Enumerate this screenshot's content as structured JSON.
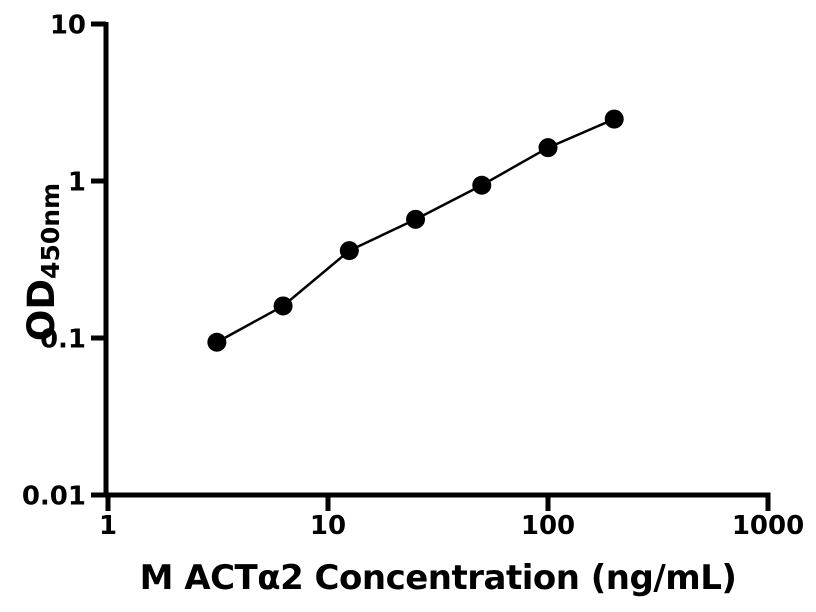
{
  "figure": {
    "background_color": "#ffffff",
    "ink_color": "#000000"
  },
  "chart_data": {
    "type": "scatter",
    "subtype": "log-log standard curve with connecting line",
    "title": "",
    "xlabel": "M ACTα2 Concentration (ng/mL)",
    "ylabel_main": "OD",
    "ylabel_sub": "450nm",
    "x_scale": "log10",
    "y_scale": "log10",
    "xlim": [
      1,
      1000
    ],
    "ylim": [
      0.01,
      10
    ],
    "x_ticks": [
      1,
      10,
      100,
      1000
    ],
    "x_tick_labels": [
      "1",
      "10",
      "100",
      "1000"
    ],
    "y_ticks": [
      10,
      1,
      0.1,
      0.01
    ],
    "y_tick_labels": [
      "10",
      "1",
      "0.1",
      "0.01"
    ],
    "grid": false,
    "legend": false,
    "series": [
      {
        "name": "standard curve",
        "marker": "filled-circle",
        "line": true,
        "color": "#000000",
        "points": [
          {
            "x": 3.125,
            "y": 0.094
          },
          {
            "x": 6.25,
            "y": 0.16
          },
          {
            "x": 12.5,
            "y": 0.36
          },
          {
            "x": 25,
            "y": 0.57
          },
          {
            "x": 50,
            "y": 0.94
          },
          {
            "x": 100,
            "y": 1.63
          },
          {
            "x": 200,
            "y": 2.48
          }
        ]
      }
    ]
  }
}
